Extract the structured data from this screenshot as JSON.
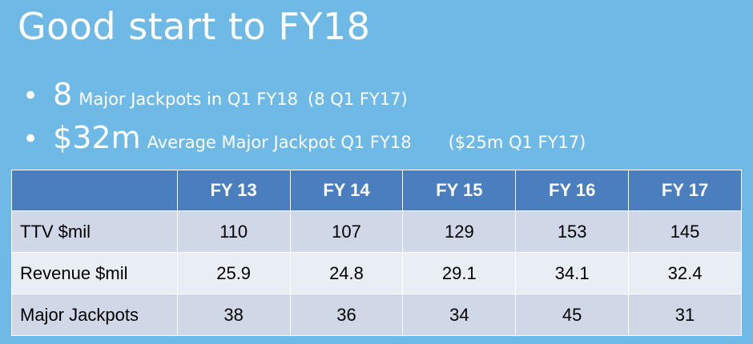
{
  "header": {
    "title": "Good start to FY18"
  },
  "bullets": [
    {
      "figure": "8",
      "text": "Major Jackpots in Q1 FY18",
      "note": "(8 Q1 FY17)"
    },
    {
      "figure": "$32m",
      "text": "Average Major Jackpot Q1 FY18",
      "note": "($25m Q1 FY17)"
    }
  ],
  "table": {
    "columns": [
      "FY 13",
      "FY 14",
      "FY 15",
      "FY 16",
      "FY 17"
    ],
    "rows": [
      {
        "label": "TTV $mil",
        "values": [
          110,
          107,
          129,
          153,
          145
        ]
      },
      {
        "label": "Revenue $mil",
        "values": [
          25.9,
          24.8,
          29.1,
          34.1,
          32.4
        ]
      },
      {
        "label": "Major Jackpots",
        "values": [
          38,
          36,
          34,
          45,
          31
        ]
      }
    ]
  }
}
